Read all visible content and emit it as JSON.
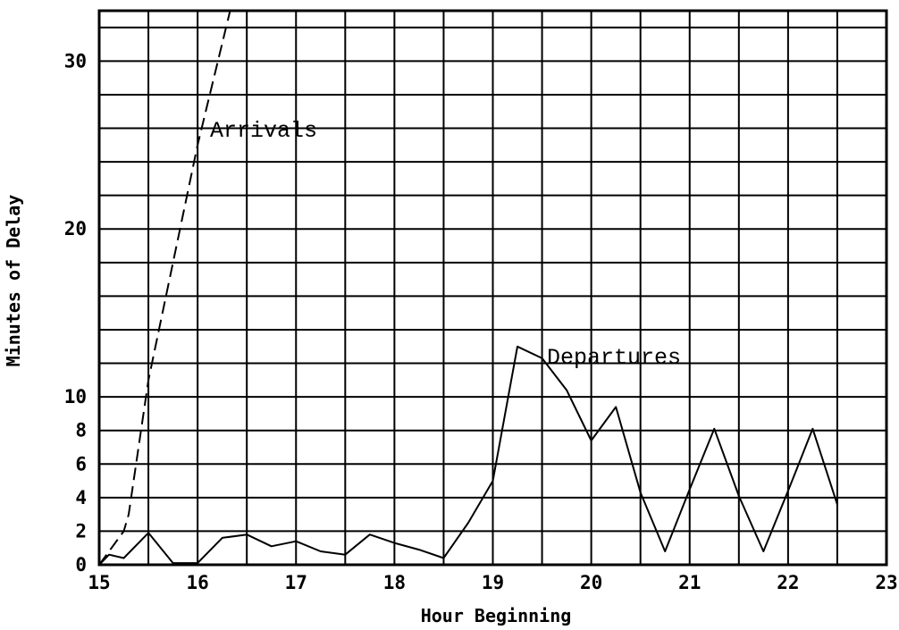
{
  "chart_data": {
    "type": "line",
    "title": "",
    "xlabel": "Hour Beginning",
    "ylabel": "Minutes of Delay",
    "xlim": [
      15,
      23
    ],
    "ylim": [
      0,
      33
    ],
    "xticks": [
      15,
      16,
      17,
      18,
      19,
      20,
      21,
      22,
      23
    ],
    "yticks": [
      0,
      2,
      4,
      6,
      8,
      10,
      20,
      30
    ],
    "grid": true,
    "series": [
      {
        "name": "Arrivals",
        "style": "dashed",
        "x": [
          15.0,
          15.1,
          15.25,
          15.3,
          15.5,
          16.0,
          16.33
        ],
        "y": [
          0,
          0.8,
          2.0,
          3.0,
          11.0,
          25.0,
          33.0
        ]
      },
      {
        "name": "Departures",
        "style": "solid",
        "x": [
          15.0,
          15.1,
          15.25,
          15.5,
          15.75,
          16.0,
          16.25,
          16.5,
          16.75,
          17.0,
          17.25,
          17.5,
          17.75,
          18.0,
          18.25,
          18.5,
          18.75,
          19.0,
          19.25,
          19.5,
          19.75,
          20.0,
          20.25,
          20.5,
          20.75,
          21.0,
          21.25,
          21.5,
          21.75,
          22.0,
          22.25,
          22.5
        ],
        "y": [
          0,
          0.6,
          0.4,
          1.9,
          0.1,
          0.1,
          1.6,
          1.8,
          1.1,
          1.4,
          0.8,
          0.6,
          1.8,
          1.3,
          0.9,
          0.4,
          2.5,
          5.0,
          13.0,
          12.3,
          10.4,
          7.4,
          9.4,
          4.3,
          0.8,
          4.5,
          8.1,
          4.1,
          0.8,
          4.4,
          8.1,
          3.6
        ]
      }
    ]
  }
}
